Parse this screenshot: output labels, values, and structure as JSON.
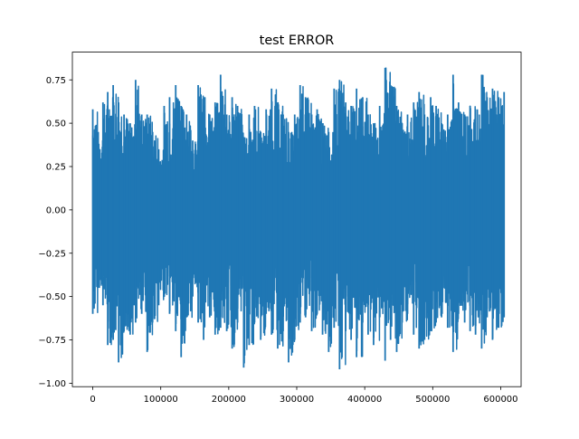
{
  "chart_data": {
    "type": "line",
    "title": "test ERROR",
    "xlabel": "",
    "ylabel": "",
    "xlim": [
      -30000,
      630000
    ],
    "ylim": [
      -1.02,
      0.91
    ],
    "x_ticks": [
      0,
      100000,
      200000,
      300000,
      400000,
      500000,
      600000
    ],
    "x_tick_labels": [
      "0",
      "100000",
      "200000",
      "300000",
      "400000",
      "500000",
      "600000"
    ],
    "y_ticks": [
      0.75,
      0.5,
      0.25,
      0.0,
      -0.25,
      -0.5,
      -0.75,
      -1.0
    ],
    "y_tick_labels": [
      "0.75",
      "0.50",
      "0.25",
      "0.00",
      "−0.25",
      "−0.50",
      "−0.75",
      "−1.00"
    ],
    "grid": false,
    "legend": "none",
    "series": [
      {
        "color": "#1f77b4",
        "x": [
          0,
          8000,
          15000,
          22000,
          30000,
          38000,
          46000,
          55000,
          63000,
          72000,
          80000,
          88000,
          97000,
          105000,
          113000,
          122000,
          130000,
          138000,
          147000,
          155000,
          163000,
          172000,
          180000,
          188000,
          197000,
          205000,
          213000,
          222000,
          230000,
          238000,
          247000,
          255000,
          263000,
          272000,
          280000,
          288000,
          297000,
          305000,
          313000,
          322000,
          330000,
          338000,
          347000,
          355000,
          363000,
          372000,
          380000,
          388000,
          397000,
          405000,
          413000,
          422000,
          430000,
          438000,
          447000,
          455000,
          463000,
          472000,
          480000,
          488000,
          497000,
          505000,
          513000,
          522000,
          530000,
          538000,
          547000,
          555000,
          563000,
          572000,
          580000,
          588000,
          597000,
          605000
        ],
        "y_max": [
          0.58,
          0.45,
          0.62,
          0.68,
          0.72,
          0.62,
          0.55,
          0.5,
          0.75,
          0.55,
          0.55,
          0.45,
          0.35,
          0.6,
          0.65,
          0.72,
          0.6,
          0.55,
          0.4,
          0.72,
          0.65,
          0.55,
          0.62,
          0.78,
          0.55,
          0.65,
          0.6,
          0.42,
          0.55,
          0.6,
          0.45,
          0.58,
          0.7,
          0.62,
          0.55,
          0.45,
          0.55,
          0.72,
          0.65,
          0.55,
          0.58,
          0.5,
          0.45,
          0.7,
          0.75,
          0.62,
          0.6,
          0.7,
          0.65,
          0.55,
          0.5,
          0.6,
          0.82,
          0.72,
          0.6,
          0.5,
          0.55,
          0.62,
          0.68,
          0.55,
          0.65,
          0.6,
          0.5,
          0.55,
          0.78,
          0.62,
          0.55,
          0.6,
          0.58,
          0.78,
          0.65,
          0.7,
          0.65,
          0.68
        ],
        "y_min": [
          -0.6,
          -0.45,
          -0.55,
          -0.78,
          -0.75,
          -0.88,
          -0.7,
          -0.72,
          -0.65,
          -0.6,
          -0.82,
          -0.65,
          -0.55,
          -0.5,
          -0.6,
          -0.7,
          -0.85,
          -0.62,
          -0.5,
          -0.65,
          -0.75,
          -0.62,
          -0.72,
          -0.68,
          -0.7,
          -0.8,
          -0.65,
          -0.91,
          -0.78,
          -0.65,
          -0.75,
          -0.6,
          -0.72,
          -0.8,
          -0.7,
          -0.88,
          -0.75,
          -0.65,
          -0.62,
          -0.7,
          -0.6,
          -0.72,
          -0.82,
          -0.68,
          -0.92,
          -0.7,
          -0.75,
          -0.85,
          -0.65,
          -0.72,
          -0.78,
          -0.62,
          -0.87,
          -0.75,
          -0.82,
          -0.65,
          -0.6,
          -0.72,
          -0.8,
          -0.75,
          -0.7,
          -0.65,
          -0.62,
          -0.68,
          -0.82,
          -0.6,
          -0.65,
          -0.7,
          -0.72,
          -0.8,
          -0.62,
          -0.75,
          -0.68,
          -0.62
        ]
      }
    ]
  }
}
